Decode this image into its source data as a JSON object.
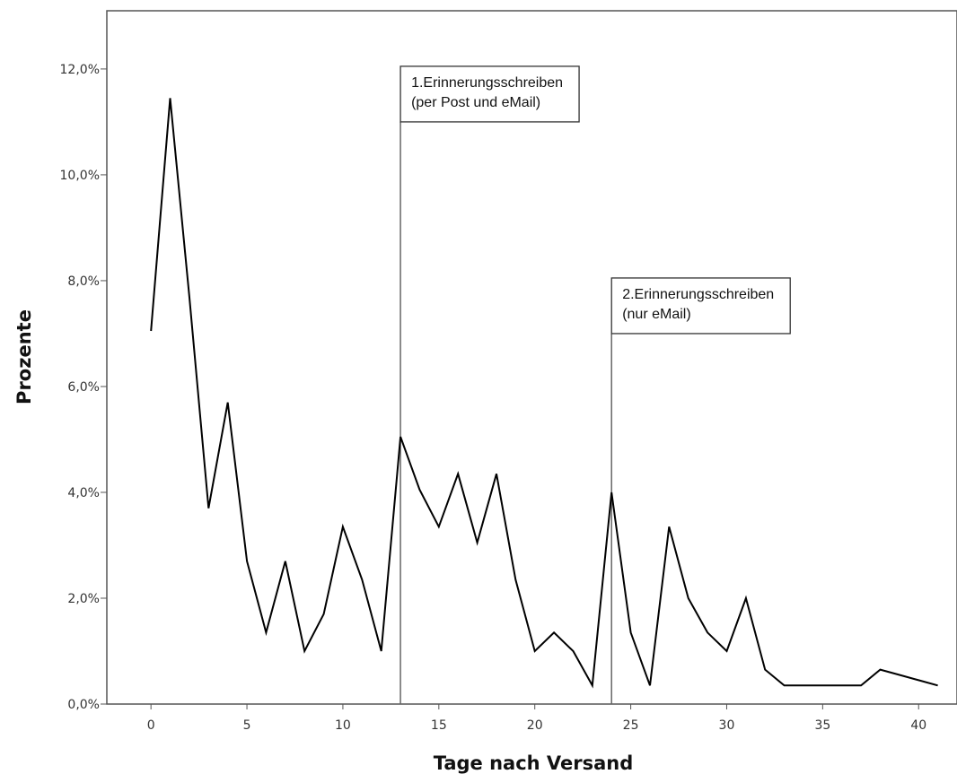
{
  "chart_data": {
    "type": "line",
    "title": "",
    "xlabel": "Tage nach Versand",
    "ylabel": "Prozente",
    "xlim": [
      -2.3,
      42.0
    ],
    "ylim": [
      0,
      13.1
    ],
    "x_ticks": [
      0,
      5,
      10,
      15,
      20,
      25,
      30,
      35,
      40
    ],
    "x_tick_labels": [
      "0",
      "5",
      "10",
      "15",
      "20",
      "25",
      "30",
      "35",
      "40"
    ],
    "y_ticks": [
      0,
      2,
      4,
      6,
      8,
      10,
      12
    ],
    "y_tick_labels": [
      "0,0%",
      "2,0%",
      "4,0%",
      "6,0%",
      "8,0%",
      "10,0%",
      "12,0%"
    ],
    "grid": false,
    "series": [
      {
        "name": "",
        "color": "#000000",
        "x": [
          0,
          1,
          2,
          3,
          4,
          5,
          6,
          7,
          8,
          9,
          10,
          11,
          12,
          13,
          14,
          15,
          16,
          17,
          18,
          19,
          20,
          21,
          22,
          23,
          24,
          25,
          26,
          27,
          28,
          29,
          30,
          31,
          32,
          33,
          34,
          35,
          36,
          37,
          38,
          39,
          40,
          41
        ],
        "y": [
          7.05,
          11.45,
          7.7,
          3.7,
          5.7,
          2.7,
          1.35,
          2.7,
          1.0,
          1.7,
          3.35,
          2.35,
          1.0,
          5.05,
          4.05,
          3.35,
          4.35,
          3.05,
          4.35,
          2.35,
          1.0,
          1.35,
          1.0,
          0.35,
          4.0,
          1.35,
          0.35,
          3.35,
          2.0,
          1.35,
          1.0,
          2.0,
          0.65,
          0.35,
          0.35,
          0.35,
          0.35,
          0.35,
          0.65,
          0.55,
          0.45,
          0.35
        ]
      }
    ],
    "annotations": [
      {
        "x": 13,
        "lines": [
          "1.Erinnerungsschreiben",
          "(per Post und eMail)"
        ],
        "label_y": 11.0
      },
      {
        "x": 24,
        "lines": [
          "2.Erinnerungsschreiben",
          "(nur eMail)"
        ],
        "label_y": 7.0
      }
    ]
  }
}
